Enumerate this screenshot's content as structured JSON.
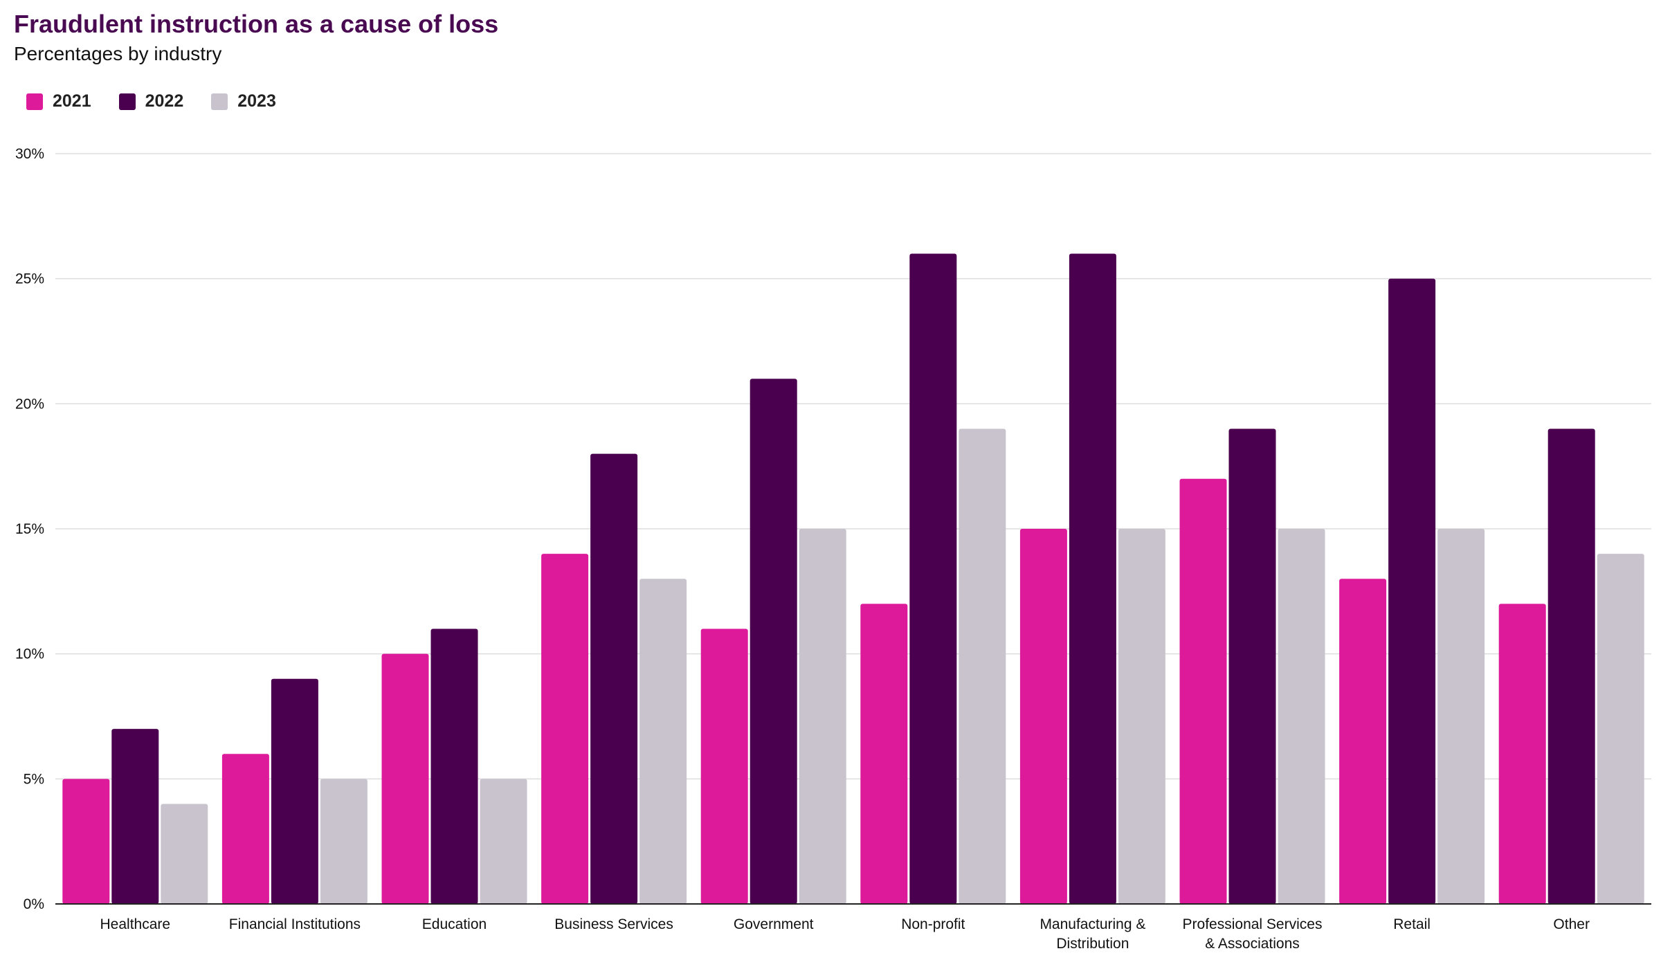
{
  "chart_data": {
    "type": "bar",
    "title": "Fraudulent instruction as a cause of loss",
    "subtitle": "Percentages by industry",
    "categories": [
      [
        "Healthcare"
      ],
      [
        "Financial Institutions"
      ],
      [
        "Education"
      ],
      [
        "Business Services"
      ],
      [
        "Government"
      ],
      [
        "Non-profit"
      ],
      [
        "Manufacturing &",
        "Distribution"
      ],
      [
        "Professional Services",
        "& Associations"
      ],
      [
        "Retail"
      ],
      [
        "Other"
      ]
    ],
    "series": [
      {
        "name": "2021",
        "color": "#dd1a9a",
        "values": [
          5,
          6,
          10,
          14,
          11,
          12,
          15,
          17,
          13,
          12
        ]
      },
      {
        "name": "2022",
        "color": "#4a004e",
        "values": [
          7,
          9,
          11,
          18,
          21,
          26,
          26,
          19,
          25,
          19
        ]
      },
      {
        "name": "2023",
        "color": "#c9c3ce",
        "values": [
          4,
          5,
          5,
          13,
          15,
          19,
          15,
          15,
          15,
          14
        ]
      }
    ],
    "yticks": [
      "0%",
      "5%",
      "10%",
      "15%",
      "20%",
      "25%",
      "30%"
    ],
    "ylim": [
      0,
      30
    ],
    "xlabel": "",
    "ylabel": "",
    "grid": true,
    "legend_position": "top-left"
  }
}
